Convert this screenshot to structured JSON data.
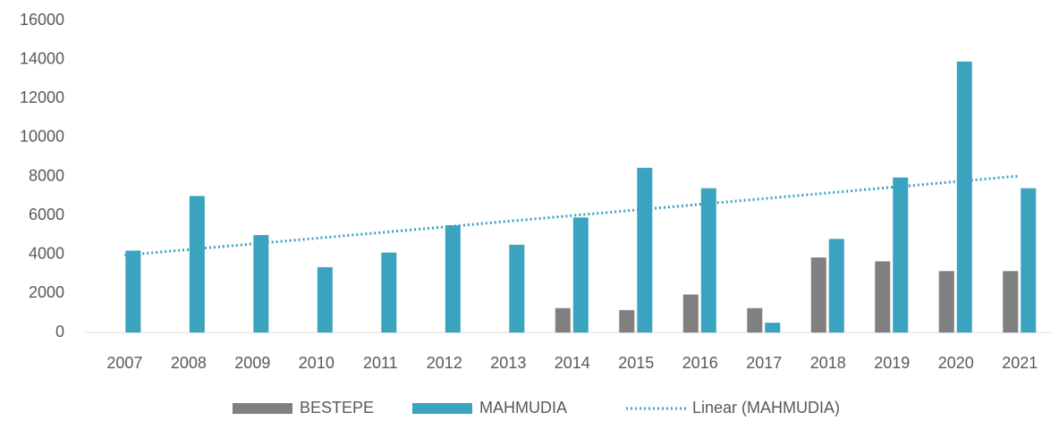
{
  "chart_data": {
    "type": "bar",
    "categories": [
      "2007",
      "2008",
      "2009",
      "2010",
      "2011",
      "2012",
      "2013",
      "2014",
      "2015",
      "2016",
      "2017",
      "2018",
      "2019",
      "2020",
      "2021"
    ],
    "series": [
      {
        "name": "BESTEPE",
        "color": "#808080",
        "values": [
          null,
          null,
          null,
          null,
          null,
          null,
          null,
          1250,
          1150,
          1950,
          1250,
          3850,
          3650,
          3150,
          3150
        ]
      },
      {
        "name": "MAHMUDIA",
        "color": "#3aa3bf",
        "values": [
          4200,
          7000,
          5000,
          3350,
          4100,
          5500,
          4500,
          5900,
          8450,
          7400,
          500,
          4800,
          7950,
          13900,
          7400
        ]
      }
    ],
    "trendline": {
      "name": "Linear (MAHMUDIA)",
      "color": "#3aa3bf"
    },
    "ylim": [
      0,
      16000
    ],
    "yticks": [
      0,
      2000,
      4000,
      6000,
      8000,
      10000,
      12000,
      14000,
      16000
    ],
    "grid": false,
    "legend": "bottom"
  }
}
